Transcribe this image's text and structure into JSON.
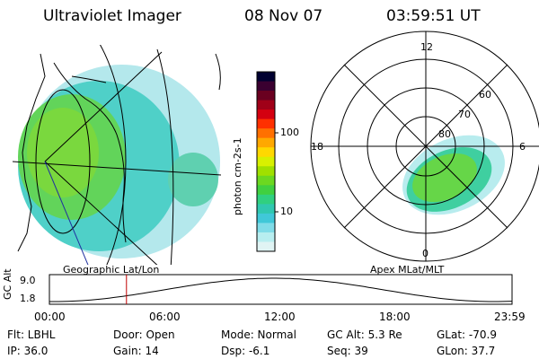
{
  "header": {
    "title": "Ultraviolet Imager",
    "date": "08 Nov 07",
    "time": "03:59:51 UT"
  },
  "left_panel": {
    "caption": "Geographic Lat/Lon"
  },
  "right_panel": {
    "caption": "Apex MLat/MLT",
    "mlt_labels": [
      "12",
      "18",
      "6",
      "0"
    ],
    "mlat_labels": [
      "60",
      "70",
      "80"
    ]
  },
  "colorbar": {
    "unit_label": "photon cm-2s-1",
    "ticks": [
      "100",
      "10"
    ],
    "colors": [
      "#000030",
      "#3a0030",
      "#6a0020",
      "#a00018",
      "#d40010",
      "#ff3000",
      "#ff7000",
      "#ffa800",
      "#ffd800",
      "#d8f000",
      "#a0e000",
      "#6cd820",
      "#40d040",
      "#30d080",
      "#30c8b0",
      "#40c8d8",
      "#80dce8",
      "#b8eef0",
      "#e0f4f4"
    ]
  },
  "altitude_plot": {
    "ylabel": "GC Alt",
    "yticks": [
      "9.0",
      "1.8"
    ],
    "xticks": [
      "00:00",
      "06:00",
      "12:00",
      "18:00",
      "23:59"
    ],
    "marker_time": "03:59:51"
  },
  "info": {
    "filter": "Flt: LBHL",
    "ip": "IP: 36.0",
    "door": "Door: Open",
    "gain": "Gain: 14",
    "mode": "Mode: Normal",
    "dsp": "Dsp:    -6.1",
    "gc_alt": "GC Alt: 5.3 Re",
    "seq": "Seq: 39",
    "glat": "GLat: -70.9",
    "glon": "GLon:  37.7"
  }
}
